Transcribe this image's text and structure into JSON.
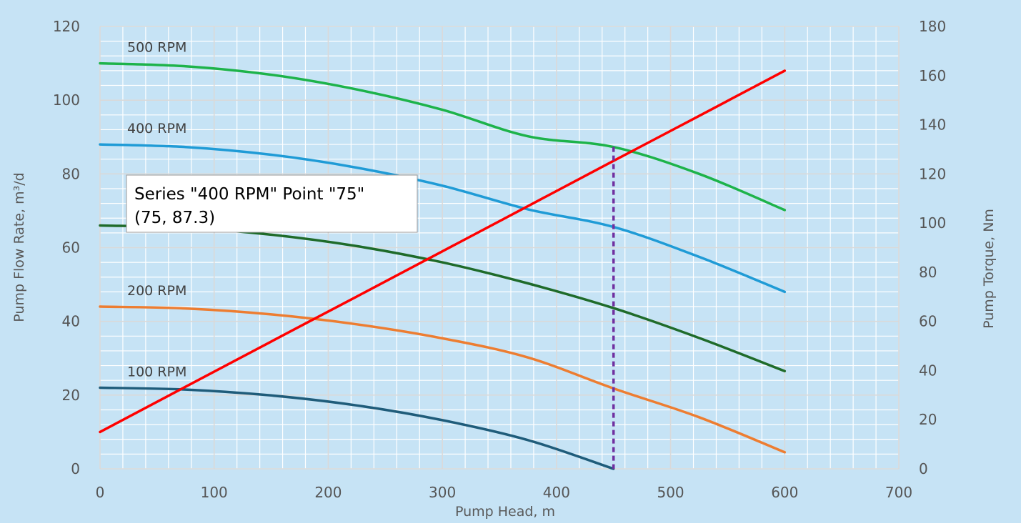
{
  "chart_data": {
    "type": "line",
    "title": "",
    "xlabel": "Pump Head, m",
    "ylabel": "Pump Flow Rate, m³/d",
    "y2label": "Pump Torque, Nm",
    "xlim": [
      0,
      700
    ],
    "ylim": [
      0,
      120
    ],
    "y2lim": [
      0,
      180
    ],
    "x_ticks": [
      "0",
      "100",
      "200",
      "300",
      "400",
      "500",
      "600",
      "700"
    ],
    "y_ticks": [
      "0",
      "20",
      "40",
      "60",
      "80",
      "100",
      "120"
    ],
    "y2_ticks": [
      "0",
      "20",
      "40",
      "60",
      "80",
      "100",
      "120",
      "140",
      "160",
      "180"
    ],
    "grid": true,
    "x": [
      0,
      75,
      150,
      225,
      300,
      375,
      450,
      525,
      600
    ],
    "series": [
      {
        "name": "500 RPM",
        "color": "#1db34a",
        "axis": "left",
        "values": [
          110,
          109.2,
          106.9,
          102.9,
          97.4,
          90.2,
          87.3,
          80.0,
          70.2
        ]
      },
      {
        "name": "400 RPM",
        "color": "#1f9bd6",
        "axis": "left",
        "values": [
          88,
          87.3,
          85.2,
          81.7,
          76.8,
          70.4,
          65.6,
          57.5,
          48.0
        ]
      },
      {
        "name": "",
        "color": "#1f6b2a",
        "axis": "left",
        "values": [
          66,
          65.4,
          63.5,
          60.4,
          56.0,
          50.3,
          43.6,
          35.5,
          26.5
        ]
      },
      {
        "name": "200 RPM",
        "color": "#ed7d31",
        "axis": "left",
        "values": [
          44,
          43.5,
          41.9,
          39.2,
          35.4,
          30.2,
          21.8,
          14.0,
          4.5
        ]
      },
      {
        "name": "100 RPM",
        "color": "#1f5c7a",
        "axis": "left",
        "values": [
          22,
          21.5,
          19.9,
          17.2,
          13.2,
          7.8,
          0,
          null,
          null
        ]
      },
      {
        "name": "",
        "color": "#ff0000",
        "axis": "right",
        "values": [
          15,
          33.4,
          51.8,
          70.1,
          88.5,
          106.9,
          125.3,
          143.6,
          162.0
        ]
      }
    ],
    "reference_line": {
      "x": 450,
      "color": "#7030a0"
    },
    "tooltip": {
      "line1": "Series \"400 RPM\" Point \"75\"",
      "line2": "(75, 87.3)"
    }
  }
}
